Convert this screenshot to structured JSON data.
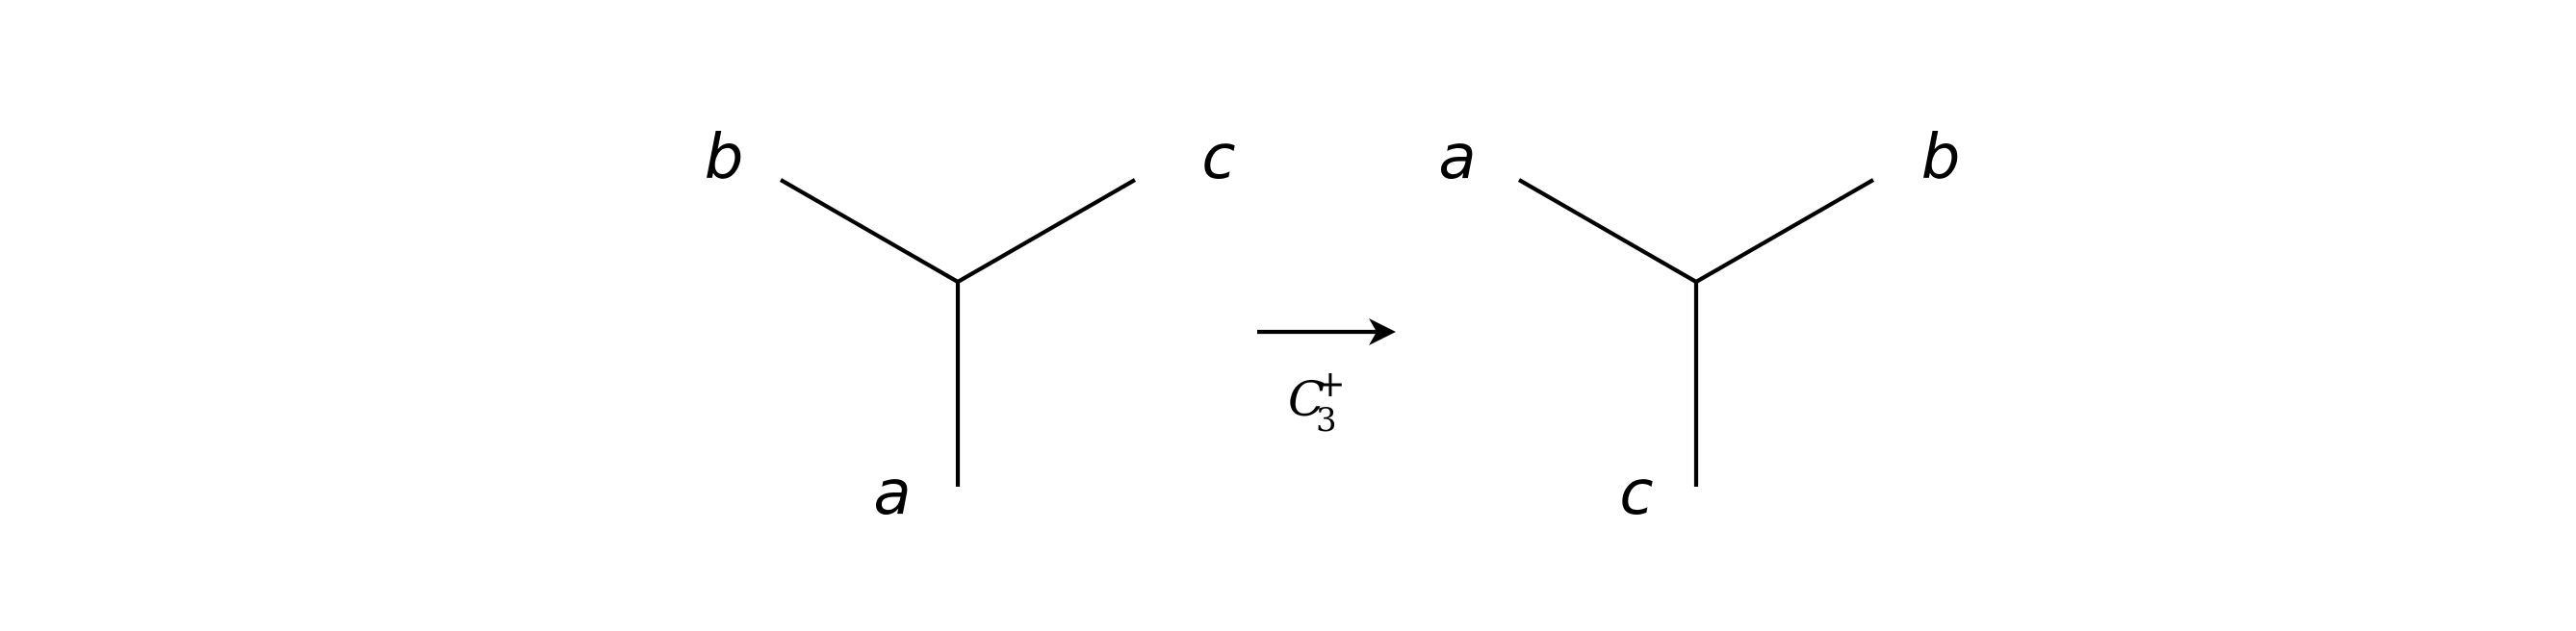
{
  "left_diagram": {
    "labels": {
      "upper_left": "b",
      "upper_right": "c",
      "bottom": "a"
    }
  },
  "right_diagram": {
    "labels": {
      "upper_left": "a",
      "upper_right": "b",
      "bottom": "c"
    }
  },
  "operation": {
    "symbol": "C",
    "subscript": "3",
    "superscript": "+"
  }
}
